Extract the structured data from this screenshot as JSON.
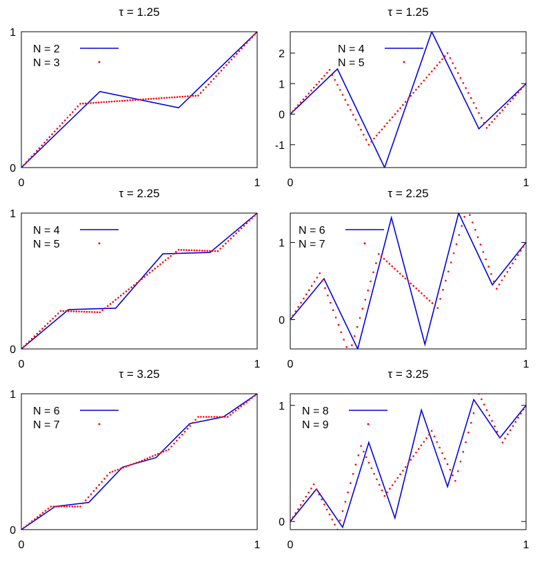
{
  "colors": {
    "line": "#0000dd",
    "dots": "#ff0000",
    "axis": "#000000"
  },
  "chart_data": [
    {
      "type": "line",
      "title": "τ = 1.25",
      "xlim": [
        0,
        1
      ],
      "ylim": [
        0,
        1
      ],
      "xticks": [
        "0",
        "1"
      ],
      "yticks": [
        0,
        1
      ],
      "ytick_labels": [
        "0",
        "1"
      ],
      "legend": "top-left",
      "series": [
        {
          "name": "N = 2",
          "style": "line",
          "x": [
            0,
            0.333,
            0.667,
            1
          ],
          "y": [
            0,
            0.56,
            0.44,
            1
          ]
        },
        {
          "name": "N = 3",
          "style": "dots",
          "x": [
            0,
            0.25,
            0.75,
            1
          ],
          "y": [
            0,
            0.47,
            0.53,
            1
          ]
        }
      ]
    },
    {
      "type": "line",
      "title": "τ = 1.25",
      "xlim": [
        0,
        1
      ],
      "ylim": [
        -1.75,
        2.7
      ],
      "xticks": [
        "0",
        "1"
      ],
      "yticks": [
        -1,
        0,
        1,
        2
      ],
      "ytick_labels": [
        "-1",
        "0",
        "1",
        "2"
      ],
      "legend": "top-center",
      "series": [
        {
          "name": "N = 4",
          "style": "line",
          "x": [
            0,
            0.2,
            0.4,
            0.6,
            0.8,
            1
          ],
          "y": [
            0,
            1.48,
            -1.75,
            2.7,
            -0.48,
            1
          ]
        },
        {
          "name": "N = 5",
          "style": "dots",
          "x": [
            0,
            0.167,
            0.333,
            0.5,
            0.667,
            0.833,
            1
          ],
          "y": [
            0,
            1.45,
            -1.0,
            0.5,
            2.0,
            -0.45,
            1
          ]
        }
      ]
    },
    {
      "type": "line",
      "title": "τ = 2.25",
      "xlim": [
        0,
        1
      ],
      "ylim": [
        0,
        1
      ],
      "xticks": [
        "0",
        "1"
      ],
      "yticks": [
        0,
        1
      ],
      "ytick_labels": [
        "0",
        "1"
      ],
      "legend": "top-left",
      "series": [
        {
          "name": "N = 4",
          "style": "line",
          "x": [
            0,
            0.2,
            0.4,
            0.6,
            0.8,
            1
          ],
          "y": [
            0,
            0.29,
            0.3,
            0.7,
            0.71,
            1
          ]
        },
        {
          "name": "N = 5",
          "style": "dots",
          "x": [
            0,
            0.167,
            0.333,
            0.5,
            0.667,
            0.833,
            1
          ],
          "y": [
            0,
            0.28,
            0.27,
            0.5,
            0.73,
            0.72,
            1
          ]
        }
      ]
    },
    {
      "type": "line",
      "title": "τ = 2.25",
      "xlim": [
        0,
        1
      ],
      "ylim": [
        -0.38,
        1.38
      ],
      "xticks": [
        "0",
        "1"
      ],
      "yticks": [
        0,
        1
      ],
      "ytick_labels": [
        "0",
        "1"
      ],
      "legend": "top-left",
      "series": [
        {
          "name": "N = 6",
          "style": "line",
          "x": [
            0,
            0.143,
            0.286,
            0.429,
            0.571,
            0.714,
            0.857,
            1
          ],
          "y": [
            0,
            0.53,
            -0.38,
            1.32,
            -0.32,
            1.38,
            0.45,
            1
          ]
        },
        {
          "name": "N = 7",
          "style": "dots",
          "x": [
            0,
            0.125,
            0.25,
            0.375,
            0.5,
            0.625,
            0.75,
            0.875,
            1
          ],
          "y": [
            0,
            0.6,
            -0.45,
            0.85,
            0.5,
            0.15,
            1.45,
            0.4,
            1
          ]
        }
      ]
    },
    {
      "type": "line",
      "title": "τ = 3.25",
      "xlim": [
        0,
        1
      ],
      "ylim": [
        0,
        1
      ],
      "xticks": [
        "0",
        "1"
      ],
      "yticks": [
        0,
        1
      ],
      "ytick_labels": [
        "0",
        "1"
      ],
      "legend": "top-left",
      "series": [
        {
          "name": "N = 6",
          "style": "line",
          "x": [
            0,
            0.143,
            0.286,
            0.429,
            0.571,
            0.714,
            0.857,
            1
          ],
          "y": [
            0,
            0.17,
            0.2,
            0.46,
            0.53,
            0.78,
            0.83,
            1
          ]
        },
        {
          "name": "N = 7",
          "style": "dots",
          "x": [
            0,
            0.125,
            0.25,
            0.375,
            0.5,
            0.625,
            0.75,
            0.875,
            1
          ],
          "y": [
            0,
            0.17,
            0.17,
            0.42,
            0.5,
            0.59,
            0.83,
            0.83,
            1
          ]
        }
      ]
    },
    {
      "type": "line",
      "title": "τ = 3.25",
      "xlim": [
        0,
        1
      ],
      "ylim": [
        -0.07,
        1.1
      ],
      "xticks": [
        "0",
        "1"
      ],
      "yticks": [
        0,
        1
      ],
      "ytick_labels": [
        "0",
        "1"
      ],
      "legend": "top-left",
      "series": [
        {
          "name": "N = 8",
          "style": "line",
          "x": [
            0,
            0.111,
            0.222,
            0.333,
            0.444,
            0.556,
            0.667,
            0.778,
            0.889,
            1
          ],
          "y": [
            0,
            0.28,
            -0.05,
            0.68,
            0.03,
            0.96,
            0.3,
            1.05,
            0.72,
            1
          ]
        },
        {
          "name": "N = 9",
          "style": "dots",
          "x": [
            0,
            0.1,
            0.2,
            0.3,
            0.4,
            0.5,
            0.6,
            0.7,
            0.8,
            0.9,
            1
          ],
          "y": [
            0,
            0.32,
            -0.07,
            0.65,
            0.22,
            0.5,
            0.78,
            0.35,
            1.1,
            0.68,
            1
          ]
        }
      ]
    }
  ]
}
